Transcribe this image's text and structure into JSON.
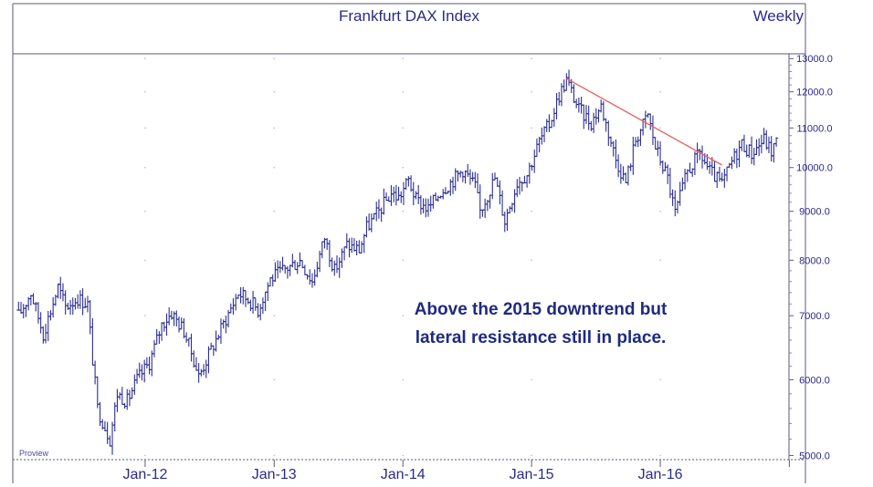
{
  "chart_data": {
    "type": "ohlc",
    "title": "Frankfurt DAX Index",
    "subtitle": "Weekly",
    "watermark": "Proview",
    "annotation_lines": [
      "Above the 2015 downtrend but",
      "lateral resistance still in place."
    ],
    "y_scale": "log",
    "ylim": [
      4950,
      13150
    ],
    "y_ticks": [
      {
        "value": 13000,
        "label": "13000.0"
      },
      {
        "value": 12000,
        "label": "12000.0"
      },
      {
        "value": 11000,
        "label": "11000.0"
      },
      {
        "value": 10000,
        "label": "10000.0"
      },
      {
        "value": 9000,
        "label": "9000.0"
      },
      {
        "value": 8000,
        "label": "8000.0"
      },
      {
        "value": 7000,
        "label": "7000.0"
      },
      {
        "value": 6000,
        "label": "6000.0"
      },
      {
        "value": 5000,
        "label": "5000.0"
      }
    ],
    "x_ticks": [
      "Jan-12",
      "Jan-13",
      "Jan-14",
      "Jan-15",
      "Jan-16"
    ],
    "xlim": [
      "2011-01-01",
      "2016-12-31"
    ],
    "grid": "dotted",
    "trendline": {
      "color": "#e06060",
      "start": [
        "2015-04-10",
        12390
      ],
      "end": [
        "2016-06-24",
        10060
      ]
    },
    "price_path": [
      [
        "2011-01-07",
        7000
      ],
      [
        "2011-02-11",
        7400
      ],
      [
        "2011-03-18",
        6700
      ],
      [
        "2011-04-29",
        7500
      ],
      [
        "2011-05-20",
        7150
      ],
      [
        "2011-06-24",
        7300
      ],
      [
        "2011-07-22",
        7200
      ],
      [
        "2011-08-05",
        6300
      ],
      [
        "2011-08-19",
        5600
      ],
      [
        "2011-09-23",
        5200
      ],
      [
        "2011-10-14",
        5800
      ],
      [
        "2011-11-11",
        5700
      ],
      [
        "2011-12-09",
        6000
      ],
      [
        "2012-01-13",
        6250
      ],
      [
        "2012-02-17",
        6850
      ],
      [
        "2012-03-16",
        7050
      ],
      [
        "2012-04-20",
        6750
      ],
      [
        "2012-05-18",
        6300
      ],
      [
        "2012-06-01",
        6050
      ],
      [
        "2012-07-06",
        6450
      ],
      [
        "2012-08-17",
        6950
      ],
      [
        "2012-09-21",
        7400
      ],
      [
        "2012-10-26",
        7250
      ],
      [
        "2012-11-16",
        7100
      ],
      [
        "2012-12-21",
        7650
      ],
      [
        "2013-01-25",
        7800
      ],
      [
        "2013-03-15",
        8000
      ],
      [
        "2013-04-19",
        7600
      ],
      [
        "2013-05-24",
        8450
      ],
      [
        "2013-06-21",
        7800
      ],
      [
        "2013-07-26",
        8300
      ],
      [
        "2013-08-30",
        8200
      ],
      [
        "2013-09-20",
        8650
      ],
      [
        "2013-10-25",
        9000
      ],
      [
        "2013-11-29",
        9400
      ],
      [
        "2013-12-20",
        9300
      ],
      [
        "2014-01-17",
        9700
      ],
      [
        "2014-02-07",
        9250
      ],
      [
        "2014-03-14",
        9050
      ],
      [
        "2014-04-18",
        9450
      ],
      [
        "2014-05-16",
        9650
      ],
      [
        "2014-06-20",
        9950
      ],
      [
        "2014-07-25",
        9550
      ],
      [
        "2014-08-08",
        9000
      ],
      [
        "2014-09-19",
        9750
      ],
      [
        "2014-10-17",
        8800
      ],
      [
        "2014-11-21",
        9650
      ],
      [
        "2014-12-19",
        9850
      ],
      [
        "2015-01-23",
        10650
      ],
      [
        "2015-02-20",
        11100
      ],
      [
        "2015-03-20",
        11900
      ],
      [
        "2015-04-10",
        12350
      ],
      [
        "2015-05-15",
        11500
      ],
      [
        "2015-06-19",
        11150
      ],
      [
        "2015-07-17",
        11600
      ],
      [
        "2015-08-28",
        10200
      ],
      [
        "2015-09-25",
        9650
      ],
      [
        "2015-10-23",
        10700
      ],
      [
        "2015-11-27",
        11350
      ],
      [
        "2015-12-18",
        10500
      ],
      [
        "2016-01-22",
        9750
      ],
      [
        "2016-02-12",
        8950
      ],
      [
        "2016-03-18",
        9900
      ],
      [
        "2016-04-22",
        10350
      ],
      [
        "2016-05-20",
        9900
      ],
      [
        "2016-06-24",
        9600
      ],
      [
        "2016-07-22",
        10150
      ],
      [
        "2016-08-19",
        10600
      ],
      [
        "2016-09-16",
        10350
      ],
      [
        "2016-10-21",
        10700
      ],
      [
        "2016-11-11",
        10400
      ],
      [
        "2016-11-25",
        10650
      ]
    ],
    "colors": {
      "bars": "#2d2f8f",
      "text": "#2b2b8a",
      "trendline": "#e06060",
      "annotation": "#1f2a80"
    }
  }
}
